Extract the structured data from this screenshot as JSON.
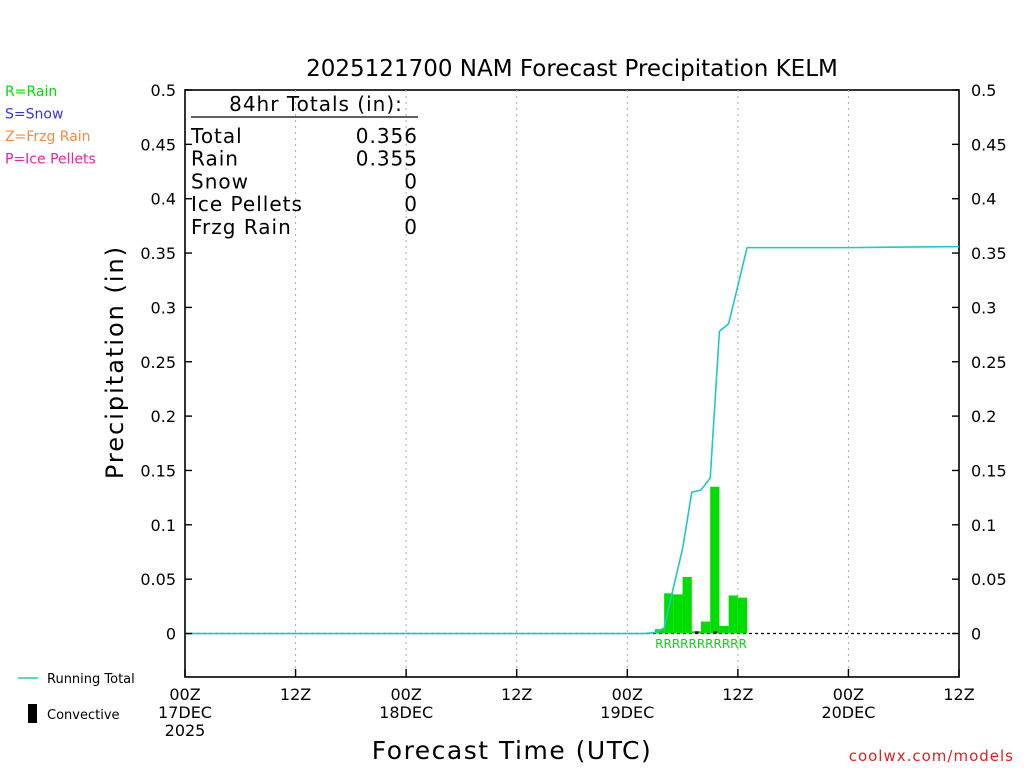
{
  "chart_data": {
    "type": "bar",
    "title": "2025121700 NAM Forecast Precipitation KELM",
    "xlabel": "Forecast Time (UTC)",
    "ylabel": "Precipitation (in)",
    "xlim": [
      0,
      84
    ],
    "ylim": [
      -0.04,
      0.5
    ],
    "y_ticks": [
      0,
      0.05,
      0.1,
      0.15,
      0.2,
      0.25,
      0.3,
      0.35,
      0.4,
      0.45,
      0.5
    ],
    "y_tick_labels": [
      "0",
      "0.05",
      "0.1",
      "0.15",
      "0.2",
      "0.25",
      "0.3",
      "0.35",
      "0.4",
      "0.45",
      "0.5"
    ],
    "x_ticks": [
      {
        "hour": 0,
        "line1": "00Z",
        "line2": "17DEC",
        "line3": "2025"
      },
      {
        "hour": 12,
        "line1": "12Z",
        "line2": "",
        "line3": ""
      },
      {
        "hour": 24,
        "line1": "00Z",
        "line2": "18DEC",
        "line3": ""
      },
      {
        "hour": 36,
        "line1": "12Z",
        "line2": "",
        "line3": ""
      },
      {
        "hour": 48,
        "line1": "00Z",
        "line2": "19DEC",
        "line3": ""
      },
      {
        "hour": 60,
        "line1": "12Z",
        "line2": "",
        "line3": ""
      },
      {
        "hour": 72,
        "line1": "00Z",
        "line2": "20DEC",
        "line3": ""
      },
      {
        "hour": 84,
        "line1": "12Z",
        "line2": "",
        "line3": ""
      }
    ],
    "grid": "vertical-dotted",
    "bars": [
      {
        "hour": 51,
        "value": 0.001,
        "type": "R"
      },
      {
        "hour": 52,
        "value": 0.004,
        "type": "R"
      },
      {
        "hour": 53,
        "value": 0.037,
        "type": "R"
      },
      {
        "hour": 54,
        "value": 0.036,
        "type": "R"
      },
      {
        "hour": 55,
        "value": 0.052,
        "type": "R"
      },
      {
        "hour": 56,
        "value": 0.002,
        "type": "R"
      },
      {
        "hour": 57,
        "value": 0.011,
        "type": "R"
      },
      {
        "hour": 58,
        "value": 0.135,
        "type": "R"
      },
      {
        "hour": 59,
        "value": 0.007,
        "type": "R"
      },
      {
        "hour": 60,
        "value": 0.035,
        "type": "R"
      },
      {
        "hour": 61,
        "value": 0.033,
        "type": "R"
      }
    ],
    "convective": [
      {
        "hour": 56,
        "value": 0.002
      },
      {
        "hour": 58,
        "value": 0.002
      }
    ],
    "running_total": {
      "name": "Running Total",
      "x": [
        0,
        50,
        51,
        52,
        53,
        54,
        55,
        56,
        57,
        58,
        59,
        60,
        61,
        62,
        72,
        84
      ],
      "y": [
        0,
        0,
        0.001,
        0.005,
        0.042,
        0.078,
        0.13,
        0.132,
        0.143,
        0.278,
        0.285,
        0.32,
        0.355,
        0.355,
        0.355,
        0.356
      ]
    },
    "type_labels": "RRRRRRRRRRR",
    "totals": {
      "heading": "84hr Totals (in):",
      "rows": [
        {
          "label": "Total",
          "value": "0.356"
        },
        {
          "label": "Rain",
          "value": "0.355"
        },
        {
          "label": "Snow",
          "value": "0"
        },
        {
          "label": "Ice Pellets",
          "value": "0"
        },
        {
          "label": "Frzg Rain",
          "value": "0"
        }
      ]
    },
    "type_legend": [
      {
        "text": "R=Rain",
        "color": "#00dd00"
      },
      {
        "text": "S=Snow",
        "color": "#3333ee"
      },
      {
        "text": "Z=Frzg Rain",
        "color": "#f08c3c"
      },
      {
        "text": "P=Ice Pellets",
        "color": "#ee2299"
      }
    ],
    "series_legend": [
      {
        "text": "Running Total",
        "color": "#20c8c8",
        "kind": "line"
      },
      {
        "text": "Convective",
        "color": "#000000",
        "kind": "box"
      }
    ],
    "colors": {
      "rain_bar": "#00dd00",
      "running_total": "#20c8c8",
      "convective": "#000000",
      "grid": "#aaaaaa",
      "credit": "#e02020"
    },
    "credit": "coolwx.com/models"
  }
}
